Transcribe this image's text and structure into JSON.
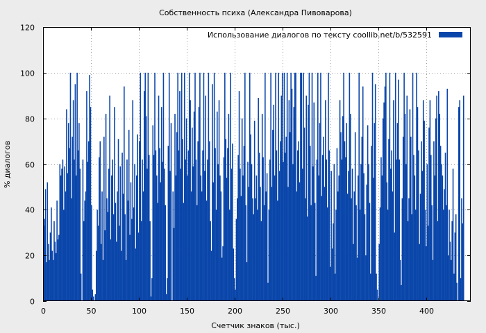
{
  "chart_data": {
    "type": "bar",
    "title": "Собственность психа (Александра Пивоварова)",
    "xlabel": "Счетчик знаков (тыс.)",
    "ylabel": "% диалогов",
    "xlim": [
      0,
      446
    ],
    "ylim": [
      0,
      120
    ],
    "xticks": [
      0,
      50,
      100,
      150,
      200,
      250,
      300,
      350,
      400
    ],
    "yticks": [
      0,
      20,
      40,
      60,
      80,
      100,
      120
    ],
    "grid": true,
    "legend_position": "top-right",
    "bar_color": "#0a46aa",
    "series": [
      {
        "name": "Использование диалогов по тексту  coollib.net/b/532591",
        "bin_width_k": 1,
        "values": [
          33,
          36,
          49,
          17,
          52,
          25,
          18,
          30,
          41,
          22,
          18,
          35,
          26,
          21,
          44,
          27,
          29,
          60,
          55,
          58,
          62,
          40,
          59,
          48,
          84,
          56,
          78,
          67,
          100,
          45,
          72,
          88,
          62,
          95,
          55,
          100,
          66,
          78,
          58,
          12,
          0,
          62,
          35,
          44,
          48,
          92,
          61,
          70,
          99,
          85,
          42,
          5,
          2,
          0,
          3,
          22,
          40,
          33,
          63,
          70,
          25,
          48,
          18,
          72,
          31,
          82,
          45,
          39,
          58,
          90,
          27,
          55,
          62,
          38,
          85,
          43,
          26,
          48,
          71,
          33,
          59,
          22,
          65,
          47,
          94,
          38,
          18,
          62,
          44,
          75,
          29,
          52,
          36,
          88,
          41,
          60,
          23,
          55,
          73,
          30,
          70,
          100,
          35,
          62,
          48,
          92,
          100,
          81,
          58,
          100,
          64,
          35,
          2,
          10,
          77,
          64,
          100,
          66,
          55,
          43,
          90,
          67,
          52,
          85,
          61,
          100,
          58,
          42,
          3,
          10,
          68,
          100,
          57,
          78,
          0,
          48,
          32,
          82,
          55,
          74,
          100,
          66,
          92,
          58,
          100,
          71,
          43,
          100,
          62,
          80,
          55,
          66,
          100,
          88,
          48,
          76,
          59,
          83,
          100,
          62,
          42,
          70,
          85,
          100,
          55,
          48,
          66,
          100,
          57,
          90,
          44,
          62,
          100,
          70,
          35,
          22,
          95,
          52,
          100,
          67,
          40,
          83,
          60,
          88,
          55,
          48,
          19,
          24,
          63,
          100,
          71,
          54,
          67,
          82,
          40,
          100,
          58,
          69,
          23,
          10,
          5,
          36,
          45,
          64,
          92,
          58,
          46,
          80,
          55,
          68,
          100,
          42,
          17,
          61,
          50,
          100,
          73,
          60,
          45,
          38,
          79,
          45,
          55,
          40,
          89,
          65,
          50,
          35,
          82,
          63,
          42,
          100,
          48,
          56,
          8,
          40,
          62,
          100,
          50,
          75,
          86,
          55,
          100,
          66,
          44,
          100,
          57,
          70,
          90,
          100,
          61,
          100,
          65,
          72,
          100,
          50,
          88,
          74,
          100,
          93,
          60,
          85,
          100,
          100,
          48,
          66,
          70,
          52,
          100,
          100,
          58,
          100,
          76,
          45,
          90,
          37,
          86,
          100,
          68,
          42,
          100,
          59,
          87,
          43,
          11,
          62,
          100,
          55,
          78,
          100,
          46,
          64,
          72,
          50,
          88,
          62,
          41,
          100,
          66,
          15,
          57,
          23,
          34,
          60,
          12,
          40,
          67,
          48,
          55,
          88,
          74,
          62,
          81,
          100,
          70,
          63,
          78,
          47,
          57,
          100,
          82,
          45,
          58,
          25,
          48,
          74,
          42,
          19,
          55,
          100,
          40,
          60,
          72,
          94,
          56,
          38,
          20,
          51,
          77,
          60,
          43,
          12,
          68,
          100,
          54,
          78,
          95,
          12,
          5,
          0,
          25,
          41,
          63,
          55,
          80,
          87,
          94,
          100,
          52,
          40,
          71,
          100,
          58,
          66,
          48,
          88,
          30,
          100,
          62,
          78,
          97,
          62,
          18,
          7,
          45,
          72,
          100,
          82,
          60,
          90,
          35,
          45,
          84,
          72,
          38,
          100,
          64,
          55,
          40,
          100,
          85,
          66,
          25,
          47,
          70,
          57,
          88,
          79,
          40,
          24,
          60,
          33,
          76,
          88,
          64,
          42,
          18,
          70,
          55,
          80,
          90,
          35,
          92,
          82,
          68,
          60,
          55,
          40,
          49,
          65,
          42,
          93,
          20,
          40,
          26,
          18,
          35,
          58,
          12,
          30,
          38,
          8,
          0,
          85,
          88,
          10,
          45,
          34,
          90
        ]
      }
    ]
  }
}
